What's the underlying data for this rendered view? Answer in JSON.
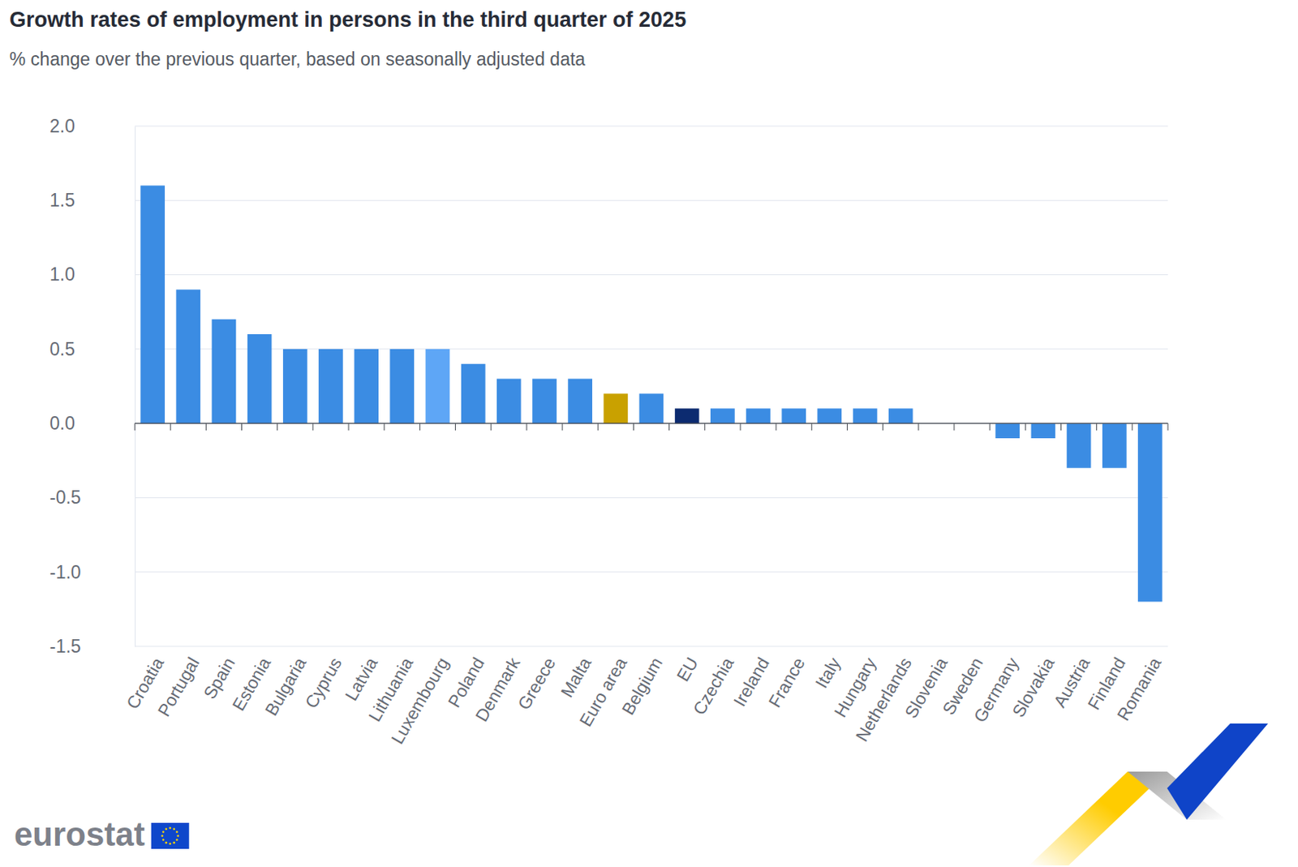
{
  "chart_data": {
    "type": "bar",
    "title": "Growth rates of employment in persons in the third quarter of 2025",
    "subtitle": "% change over the previous quarter, based on seasonally adjusted data",
    "source": "eurostat",
    "categories": [
      "Croatia",
      "Portugal",
      "Spain",
      "Estonia",
      "Bulgaria",
      "Cyprus",
      "Latvia",
      "Lithuania",
      "Luxembourg",
      "Poland",
      "Denmark",
      "Greece",
      "Malta",
      "Euro area",
      "Belgium",
      "EU",
      "Czechia",
      "Ireland",
      "France",
      "Italy",
      "Hungary",
      "Netherlands",
      "Slovenia",
      "Sweden",
      "Germany",
      "Slovakia",
      "Austria",
      "Finland",
      "Romania"
    ],
    "values": [
      1.6,
      0.9,
      0.7,
      0.6,
      0.5,
      0.5,
      0.5,
      0.5,
      0.5,
      0.4,
      0.3,
      0.3,
      0.3,
      0.2,
      0.2,
      0.1,
      0.1,
      0.1,
      0.1,
      0.1,
      0.1,
      0.1,
      0.0,
      0.0,
      -0.1,
      -0.1,
      -0.3,
      -0.3,
      -1.2
    ],
    "colors": [
      "#3b8ce3",
      "#3b8ce3",
      "#3b8ce3",
      "#3b8ce3",
      "#3b8ce3",
      "#3b8ce3",
      "#3b8ce3",
      "#3b8ce3",
      "#5ea6f6",
      "#3b8ce3",
      "#3b8ce3",
      "#3b8ce3",
      "#3b8ce3",
      "#c9a100",
      "#3b8ce3",
      "#0c2b70",
      "#3b8ce3",
      "#3b8ce3",
      "#3b8ce3",
      "#3b8ce3",
      "#3b8ce3",
      "#3b8ce3",
      "#3b8ce3",
      "#3b8ce3",
      "#3b8ce3",
      "#3b8ce3",
      "#3b8ce3",
      "#3b8ce3",
      "#3b8ce3"
    ],
    "ylim": [
      -1.5,
      2.0
    ],
    "yticks": [
      -1.5,
      {
        "value": -1,
        "label": "-1.0"
      },
      -0.5,
      {
        "value": 0,
        "label": "0.0"
      },
      0.5,
      {
        "value": 1,
        "label": "1.0"
      },
      1.5,
      {
        "value": 2,
        "label": "2.0"
      }
    ],
    "grid": true
  }
}
